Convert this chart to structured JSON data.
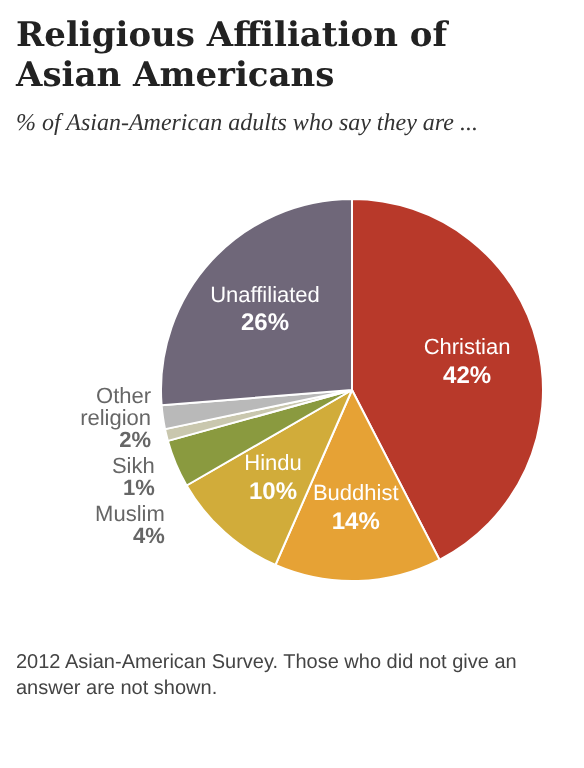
{
  "chart_data": {
    "type": "pie",
    "title": "Religious Affiliation of Asian Americans",
    "subtitle": "% of Asian-American adults who say they are ...",
    "categories": [
      "Christian",
      "Buddhist",
      "Hindu",
      "Muslim",
      "Sikh",
      "Other religion",
      "Unaffiliated"
    ],
    "values": [
      42,
      14,
      10,
      4,
      1,
      2,
      26
    ],
    "colors": [
      "#b8392a",
      "#e6a235",
      "#d1ac3a",
      "#8a9a3f",
      "#c9c7ae",
      "#b9b9b9",
      "#6f6779"
    ],
    "value_labels": [
      "42%",
      "14%",
      "10%",
      "4%",
      "1%",
      "2%",
      "26%"
    ],
    "legend": false,
    "annotations": [
      "2012 Asian-American Survey. Those who did not give an answer are not shown."
    ]
  }
}
